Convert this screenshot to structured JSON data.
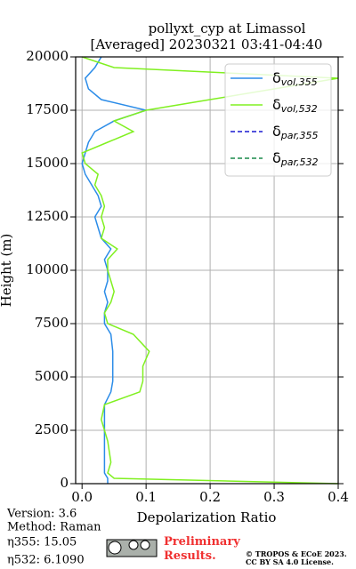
{
  "chart_data": {
    "type": "line",
    "title": "pollyxt_cyp at Limassol",
    "subtitle": "[Averaged] 20230321 03:41-04:40",
    "xlabel": "Depolarization Ratio",
    "ylabel": "Height (m)",
    "xlim": [
      -0.01,
      0.4
    ],
    "ylim": [
      0,
      20000
    ],
    "xticks": [
      {
        "value": 0,
        "label": "0.0"
      },
      0.1,
      0.2,
      0.3,
      0.4
    ],
    "yticks": [
      0,
      2500,
      5000,
      7500,
      10000,
      12500,
      15000,
      17500,
      20000
    ],
    "grid": true,
    "legend": "upper right",
    "heights": [
      0,
      250,
      500,
      1000,
      2000,
      3000,
      3700,
      4300,
      4800,
      5500,
      6200,
      7000,
      7500,
      8000,
      8500,
      9000,
      9500,
      10000,
      10500,
      11000,
      11500,
      12000,
      12500,
      13000,
      13500,
      14000,
      14500,
      15000,
      15500,
      16000,
      16500,
      17000,
      17500,
      18000,
      18500,
      19000,
      19500,
      20000
    ],
    "series": [
      {
        "name": "δvol,355",
        "color": "#2b8ce8",
        "dash": false,
        "values": [
          0.04,
          0.04,
          0.035,
          0.035,
          0.035,
          0.035,
          0.035,
          0.045,
          0.048,
          0.048,
          0.048,
          0.045,
          0.035,
          0.035,
          0.04,
          0.035,
          0.04,
          0.04,
          0.035,
          0.045,
          0.03,
          0.025,
          0.02,
          0.03,
          0.025,
          0.015,
          0.005,
          0.0,
          0.005,
          0.01,
          0.02,
          0.05,
          0.1,
          0.03,
          0.01,
          0.005,
          0.02,
          0.03
        ]
      },
      {
        "name": "δvol,532",
        "color": "#80f020",
        "dash": false,
        "values": [
          0.4,
          0.05,
          0.04,
          0.045,
          0.04,
          0.03,
          0.035,
          0.09,
          0.095,
          0.095,
          0.105,
          0.08,
          0.04,
          0.035,
          0.045,
          0.05,
          0.045,
          0.04,
          0.04,
          0.055,
          0.03,
          0.035,
          0.03,
          0.035,
          0.03,
          0.02,
          0.025,
          0.005,
          0.0,
          0.04,
          0.08,
          0.05,
          0.1,
          0.2,
          0.3,
          0.4,
          0.05,
          0.0
        ]
      },
      {
        "name": "δpar,355",
        "color": "#1a1ad0",
        "dash": true,
        "values": [
          null,
          null,
          null,
          null,
          null,
          null,
          null,
          null,
          null,
          null,
          null,
          null,
          null,
          null,
          null,
          null,
          null,
          null,
          null,
          null,
          null,
          null,
          null,
          null,
          null,
          null,
          null,
          null,
          null,
          null,
          null,
          null,
          null,
          null,
          null,
          null,
          null,
          null
        ]
      },
      {
        "name": "δpar,532",
        "color": "#1a8a4a",
        "dash": true,
        "values": [
          null,
          null,
          null,
          null,
          null,
          null,
          null,
          null,
          null,
          null,
          null,
          null,
          null,
          null,
          null,
          null,
          null,
          null,
          null,
          null,
          null,
          null,
          null,
          null,
          null,
          null,
          null,
          null,
          null,
          null,
          null,
          null,
          null,
          null,
          null,
          null,
          null,
          null
        ]
      }
    ]
  },
  "footer": {
    "version": "Version: 3.6",
    "method": "Method: Raman",
    "eta355": "η355:  15.05",
    "eta532": "η532: 6.1090",
    "preliminary": "Preliminary Results.",
    "license": "© TROPOS & ECoE 2023. CC BY SA 4.0 License."
  }
}
